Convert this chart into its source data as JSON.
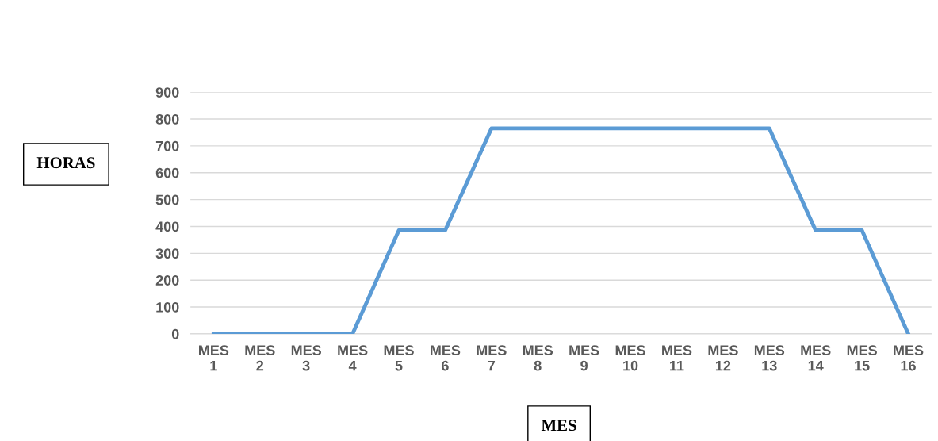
{
  "chart_data": {
    "type": "line",
    "xlabel": "MES",
    "ylabel": "HORAS",
    "categories": [
      "MES\n1",
      "MES\n2",
      "MES\n3",
      "MES\n4",
      "MES\n5",
      "MES\n6",
      "MES\n7",
      "MES\n8",
      "MES\n9",
      "MES\n10",
      "MES\n11",
      "MES\n12",
      "MES\n13",
      "MES\n14",
      "MES\n15",
      "MES\n16"
    ],
    "series": [
      {
        "color": "#5b9bd5",
        "values": [
          0,
          0,
          0,
          0,
          385,
          385,
          765,
          765,
          765,
          765,
          765,
          765,
          765,
          385,
          385,
          0
        ]
      }
    ],
    "ylim": [
      0,
      900
    ],
    "yticks": [
      0,
      100,
      200,
      300,
      400,
      500,
      600,
      700,
      800,
      900
    ],
    "grid": "y",
    "marker": "none",
    "line_style": "solid"
  }
}
